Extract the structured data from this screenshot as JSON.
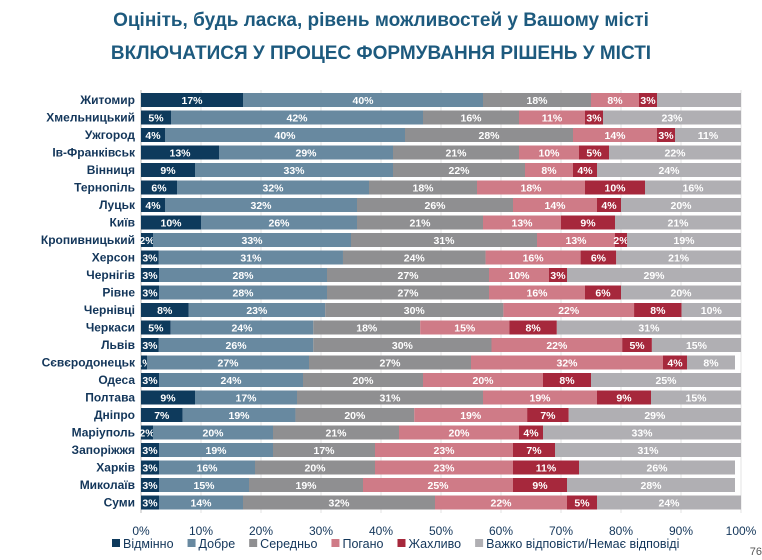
{
  "title": "Оцініть, будь ласка, рівень можливостей у Вашому місті",
  "subtitle": "ВКЛЮЧАТИСЯ У ПРОЦЕС ФОРМУВАННЯ РІШЕНЬ У МІСТІ",
  "page_number": "76",
  "chart_data": {
    "type": "bar",
    "orientation": "horizontal",
    "stacked": true,
    "title": "Оцініть, будь ласка, рівень можливостей у Вашому місті — ВКЛЮЧАТИСЯ У ПРОЦЕС ФОРМУВАННЯ РІШЕНЬ У МІСТІ",
    "xlim": [
      0,
      100
    ],
    "x_ticks": [
      "0%",
      "10%",
      "20%",
      "30%",
      "40%",
      "50%",
      "60%",
      "70%",
      "80%",
      "90%",
      "100%"
    ],
    "legend_position": "bottom",
    "categories": [
      "Житомир",
      "Хмельницький",
      "Ужгород",
      "Ів-Франківськ",
      "Вінниця",
      "Тернопіль",
      "Луцьк",
      "Київ",
      "Кропивницький",
      "Херсон",
      "Чернігів",
      "Рівне",
      "Чернівці",
      "Черкаси",
      "Львів",
      "Сєвєродонецьк",
      "Одеса",
      "Полтава",
      "Дніпро",
      "Маріуполь",
      "Запоріжжя",
      "Харків",
      "Миколаїв",
      "Суми"
    ],
    "series": [
      {
        "name": "Відмінно",
        "color": "#0e3a5c",
        "values": [
          17,
          5,
          4,
          13,
          9,
          6,
          4,
          10,
          2,
          3,
          3,
          3,
          8,
          5,
          3,
          1,
          3,
          9,
          7,
          2,
          3,
          3,
          3,
          3
        ]
      },
      {
        "name": "Добре",
        "color": "#6889a0",
        "values": [
          40,
          42,
          40,
          29,
          33,
          32,
          32,
          26,
          33,
          31,
          28,
          28,
          23,
          24,
          26,
          27,
          24,
          17,
          19,
          20,
          19,
          16,
          15,
          14
        ]
      },
      {
        "name": "Середньо",
        "color": "#8f8f91",
        "values": [
          18,
          16,
          28,
          21,
          22,
          18,
          26,
          21,
          31,
          24,
          27,
          27,
          30,
          18,
          30,
          27,
          20,
          31,
          20,
          21,
          17,
          20,
          19,
          32
        ]
      },
      {
        "name": "Погано",
        "color": "#cf7b87",
        "values": [
          8,
          11,
          14,
          10,
          8,
          18,
          14,
          13,
          13,
          16,
          10,
          16,
          22,
          15,
          22,
          32,
          20,
          19,
          19,
          20,
          23,
          23,
          25,
          22
        ]
      },
      {
        "name": "Жахливо",
        "color": "#a6283c",
        "values": [
          3,
          3,
          3,
          5,
          4,
          10,
          4,
          9,
          2,
          6,
          3,
          6,
          8,
          8,
          5,
          4,
          8,
          9,
          7,
          4,
          7,
          11,
          9,
          5
        ]
      },
      {
        "name": "Важко відповісти/Немає відповіді",
        "color": "#b0afb3",
        "values": [
          null,
          23,
          11,
          22,
          24,
          16,
          20,
          21,
          19,
          21,
          29,
          20,
          10,
          31,
          15,
          8,
          25,
          15,
          29,
          33,
          31,
          26,
          28,
          24
        ]
      }
    ]
  }
}
